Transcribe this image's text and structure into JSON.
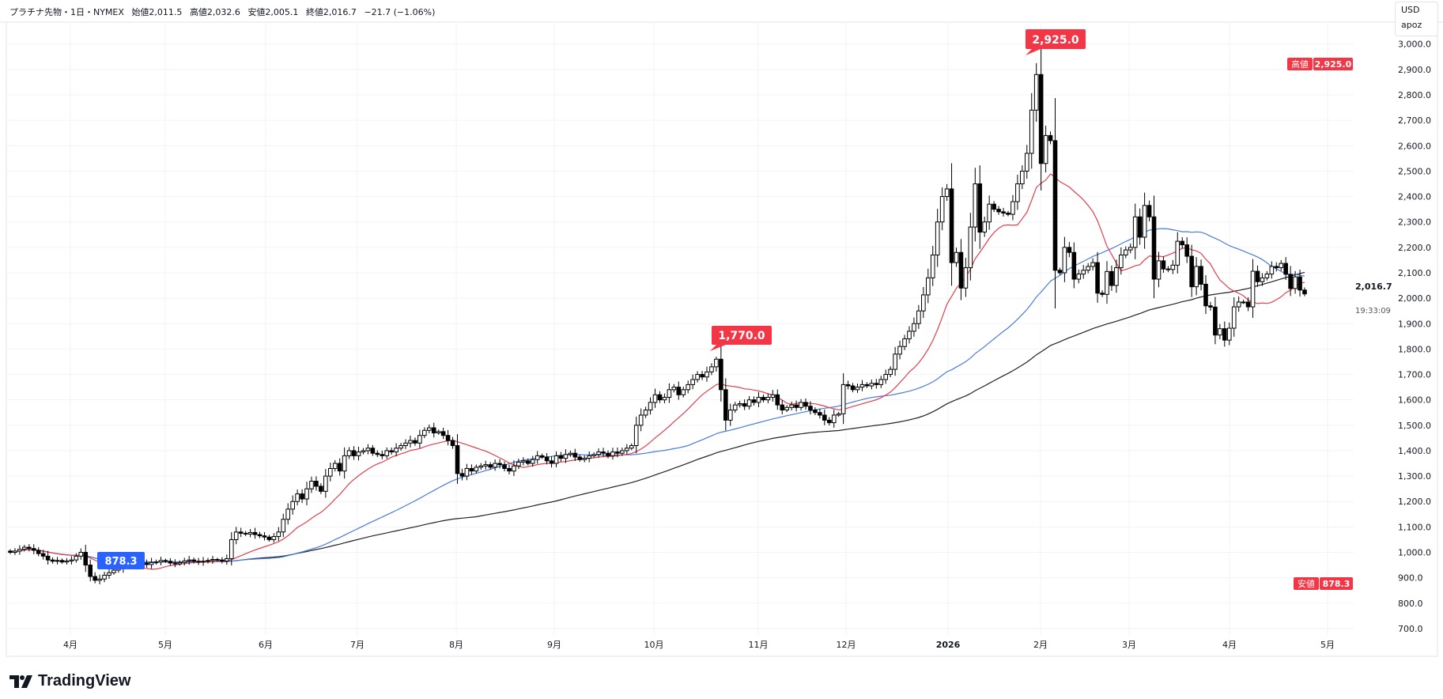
{
  "header": {
    "symbol": "プラチナ先物・1日・NYMEX",
    "open": "始値2,011.5",
    "high": "高値2,032.6",
    "low": "安値2,005.1",
    "close": "終値2,016.7",
    "change": "−21.7 (−1.06%)"
  },
  "currency_box": {
    "currency": "USD",
    "unit": "apoz"
  },
  "price_axis": {
    "last_price": "2,016.7",
    "countdown": "19:33:09",
    "high_tag": {
      "label": "高値",
      "value": "2,925.0"
    },
    "low_tag": {
      "label": "安値",
      "value": "878.3"
    }
  },
  "callouts": {
    "peak": "2,925.0",
    "local_peak": "1,770.0",
    "low": "878.3"
  },
  "brand": "TradingView",
  "colors": {
    "callout": "#f23645",
    "low_callout": "#2962ff",
    "ma_fast": "#e0404e",
    "ma_mid": "#4a7bdc",
    "ma_slow": "#222222",
    "grid": "#f0f3fa"
  },
  "chart_data": {
    "type": "candlestick",
    "title": "プラチナ先物・1日・NYMEX",
    "ylim": [
      650,
      3000
    ],
    "y_ticks": [
      "700.0",
      "800.0",
      "900.0",
      "1,000.0",
      "1,100.0",
      "1,200.0",
      "1,300.0",
      "1,400.0",
      "1,500.0",
      "1,600.0",
      "1,700.0",
      "1,800.0",
      "1,900.0",
      "2,000.0",
      "2,100.0",
      "2,200.0",
      "2,300.0",
      "2,400.0",
      "2,500.0",
      "2,600.0",
      "2,700.0",
      "2,800.0",
      "2,900.0",
      "3,000.0"
    ],
    "x_ticks": [
      "4月",
      "5月",
      "6月",
      "7月",
      "8月",
      "9月",
      "10月",
      "11月",
      "12月",
      "2026",
      "2月",
      "3月",
      "4月",
      "5月"
    ],
    "grid": true,
    "series_high": 2925.0,
    "series_low": 878.3,
    "local_high": 1770.0,
    "last_candle": {
      "open": 2011.5,
      "high": 2032.6,
      "low": 2005.1,
      "close": 2016.7
    },
    "closes": [
      1000,
      1005,
      1012,
      1020,
      1015,
      1008,
      995,
      985,
      970,
      965,
      968,
      962,
      966,
      970,
      985,
      1000,
      950,
      905,
      890,
      895,
      910,
      920,
      930,
      935,
      945,
      950,
      948,
      955,
      958,
      952,
      960,
      962,
      968,
      965,
      958,
      955,
      960,
      966,
      970,
      965,
      962,
      965,
      968,
      972,
      970,
      966,
      975,
      1050,
      1080,
      1075,
      1072,
      1078,
      1070,
      1065,
      1060,
      1050,
      1062,
      1080,
      1130,
      1170,
      1200,
      1230,
      1210,
      1250,
      1280,
      1260,
      1240,
      1300,
      1330,
      1350,
      1320,
      1380,
      1400,
      1380,
      1395,
      1400,
      1410,
      1390,
      1385,
      1380,
      1400,
      1395,
      1410,
      1420,
      1430,
      1440,
      1430,
      1460,
      1480,
      1490,
      1470,
      1475,
      1460,
      1440,
      1420,
      1310,
      1300,
      1330,
      1320,
      1335,
      1340,
      1345,
      1335,
      1350,
      1345,
      1330,
      1320,
      1340,
      1355,
      1360,
      1350,
      1365,
      1380,
      1375,
      1360,
      1350,
      1380,
      1370,
      1385,
      1390,
      1375,
      1365,
      1370,
      1380,
      1385,
      1395,
      1390,
      1380,
      1395,
      1390,
      1400,
      1410,
      1420,
      1500,
      1540,
      1560,
      1590,
      1620,
      1600,
      1610,
      1640,
      1650,
      1620,
      1640,
      1660,
      1680,
      1700,
      1690,
      1710,
      1730,
      1760,
      1640,
      1520,
      1560,
      1580,
      1585,
      1575,
      1600,
      1590,
      1610,
      1600,
      1610,
      1620,
      1580,
      1560,
      1570,
      1580,
      1570,
      1590,
      1575,
      1560,
      1550,
      1540,
      1520,
      1510,
      1540,
      1545,
      1660,
      1655,
      1640,
      1650,
      1660,
      1655,
      1665,
      1660,
      1680,
      1700,
      1720,
      1780,
      1810,
      1840,
      1870,
      1900,
      1950,
      2013,
      2080,
      2170,
      2300,
      2400,
      2430,
      2140,
      2180,
      2040,
      2120,
      2280,
      2450,
      2260,
      2300,
      2370,
      2350,
      2340,
      2335,
      2330,
      2380,
      2450,
      2500,
      2570,
      2740,
      2880,
      2530,
      2640,
      2620,
      2110,
      2100,
      2200,
      2180,
      2075,
      2095,
      2110,
      2125,
      2140,
      2020,
      2015,
      2105,
      2050,
      2120,
      2170,
      2190,
      2200,
      2320,
      2240,
      2365,
      2320,
      2075,
      2147,
      2115,
      2113,
      2130,
      2224,
      2210,
      2165,
      2045,
      2125,
      2055,
      1970,
      1965,
      1855,
      1880,
      1835,
      1882,
      1966,
      1985,
      1985,
      1966,
      2106,
      2065,
      2080,
      2095,
      2125,
      2120,
      2137,
      2094,
      2038,
      2084,
      2032,
      2017
    ]
  }
}
